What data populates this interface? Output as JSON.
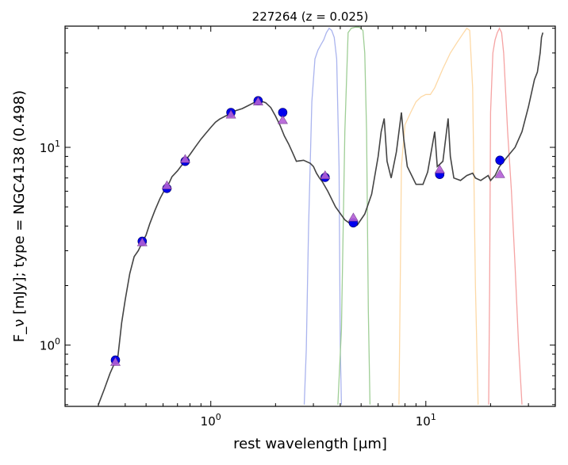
{
  "chart_data": {
    "type": "line",
    "title": "227264 (z = 0.025)",
    "xlabel": "rest wavelength [μm]",
    "ylabel": "F_ν [mJy];  type = NGC4138 (0.498)",
    "xscale": "log",
    "yscale": "log",
    "xlim": [
      0.21,
      40
    ],
    "ylim": [
      0.49,
      41
    ],
    "xticks": [
      {
        "value": 1,
        "base": "10",
        "exp": "0"
      },
      {
        "value": 10,
        "base": "10",
        "exp": "1"
      }
    ],
    "yticks": [
      {
        "value": 1,
        "base": "10",
        "exp": "0"
      },
      {
        "value": 10,
        "base": "10",
        "exp": "1"
      }
    ],
    "colors": {
      "model": "#444444",
      "observed": "#0000ee",
      "synthetic": "#b45fd6",
      "filter_blue": "#aab4ee",
      "filter_green": "#9fce96",
      "filter_orange": "#fdd9a6",
      "filter_red": "#f5a3a3"
    },
    "model_spectrum": {
      "x": [
        0.3,
        0.32,
        0.34,
        0.355,
        0.37,
        0.385,
        0.4,
        0.42,
        0.44,
        0.46,
        0.48,
        0.5,
        0.52,
        0.55,
        0.58,
        0.61,
        0.64,
        0.66,
        0.7,
        0.75,
        0.8,
        0.85,
        0.9,
        0.95,
        1.0,
        1.05,
        1.1,
        1.2,
        1.3,
        1.4,
        1.5,
        1.6,
        1.7,
        1.8,
        1.9,
        2.0,
        2.1,
        2.2,
        2.3,
        2.4,
        2.5,
        2.7,
        2.9,
        3.0,
        3.1,
        3.2,
        3.3,
        3.5,
        3.8,
        4.2,
        4.6,
        4.8,
        5.2,
        5.6,
        6.0,
        6.2,
        6.4,
        6.6,
        6.9,
        7.3,
        7.7,
        7.9,
        8.2,
        8.6,
        9.0,
        9.7,
        10.2,
        11.0,
        11.3,
        11.6,
        12.0,
        12.7,
        13.0,
        13.5,
        14.5,
        15.5,
        16.5,
        17.0,
        18.0,
        19.5,
        20.0,
        21.0,
        22.0,
        24.0,
        26.0,
        28.0,
        30.0,
        32.0,
        33.0,
        34.0,
        34.5,
        35.0
      ],
      "y": [
        0.5,
        0.6,
        0.72,
        0.8,
        0.88,
        1.3,
        1.7,
        2.3,
        2.8,
        3.0,
        3.3,
        3.6,
        4.1,
        4.8,
        5.5,
        6.1,
        6.6,
        7.1,
        7.6,
        8.4,
        9.2,
        10.1,
        11.0,
        11.8,
        12.6,
        13.4,
        13.9,
        14.6,
        15.3,
        15.7,
        16.3,
        16.9,
        17.2,
        16.8,
        15.9,
        14.4,
        12.9,
        11.4,
        10.4,
        9.4,
        8.5,
        8.6,
        8.3,
        8.0,
        7.4,
        7.0,
        6.7,
        6.0,
        5.0,
        4.3,
        4.0,
        4.05,
        4.6,
        5.8,
        9.0,
        12.0,
        14.0,
        8.5,
        7.0,
        9.5,
        15.0,
        11.0,
        8.0,
        7.2,
        6.5,
        6.5,
        7.5,
        12.0,
        8.0,
        8.2,
        8.5,
        14.0,
        9.0,
        7.0,
        6.8,
        7.2,
        7.4,
        7.0,
        6.8,
        7.2,
        6.8,
        7.2,
        8.0,
        9.0,
        10.0,
        12.0,
        16.0,
        22.0,
        24.0,
        30.0,
        36.0,
        38.0
      ]
    },
    "observed_points": {
      "x": [
        0.36,
        0.48,
        0.625,
        0.76,
        1.24,
        1.66,
        2.16,
        3.4,
        4.6,
        11.6,
        22.1
      ],
      "y": [
        0.84,
        3.35,
        6.2,
        8.5,
        15.0,
        17.2,
        15.0,
        7.05,
        4.15,
        7.3,
        8.6
      ]
    },
    "synthetic_points": {
      "x": [
        0.36,
        0.48,
        0.625,
        0.76,
        1.24,
        1.66,
        2.16,
        3.4,
        4.6,
        11.6,
        22.1
      ],
      "y": [
        0.82,
        3.3,
        6.4,
        8.7,
        14.6,
        17.0,
        13.7,
        7.2,
        4.4,
        7.7,
        7.3
      ]
    },
    "filter_curves": [
      {
        "color": "#aab4ee",
        "x": [
          2.72,
          2.78,
          2.85,
          2.95,
          3.05,
          3.15,
          3.25,
          3.35,
          3.45,
          3.55,
          3.65,
          3.75,
          3.85,
          3.95,
          4.0,
          4.05
        ],
        "y": [
          0.5,
          0.95,
          4.0,
          17.0,
          28.0,
          31.0,
          33.0,
          35.0,
          38.0,
          40.0,
          39.0,
          36.0,
          28.0,
          8.0,
          1.0,
          0.5
        ]
      },
      {
        "color": "#9fce96",
        "x": [
          3.9,
          4.05,
          4.2,
          4.35,
          4.5,
          4.7,
          4.9,
          5.1,
          5.2,
          5.3,
          5.4,
          5.5
        ],
        "y": [
          0.5,
          1.2,
          12.0,
          38.0,
          40.0,
          40.5,
          40.5,
          39.0,
          30.0,
          12.0,
          1.5,
          0.5
        ]
      },
      {
        "color": "#fdd9a6",
        "x": [
          7.5,
          7.6,
          7.7,
          8.0,
          8.5,
          9.0,
          9.5,
          10.0,
          10.5,
          11.0,
          12.0,
          13.0,
          14.0,
          15.0,
          15.5,
          16.0,
          16.5,
          17.0,
          17.5
        ],
        "y": [
          0.5,
          2.0,
          8.0,
          13.0,
          15.0,
          17.0,
          18.0,
          18.5,
          18.5,
          20.0,
          25.0,
          30.0,
          34.0,
          38.0,
          40.0,
          39.0,
          20.0,
          2.0,
          0.5
        ]
      },
      {
        "color": "#f5a3a3",
        "x": [
          19.6,
          19.8,
          20.0,
          20.5,
          21.0,
          21.5,
          22.0,
          22.5,
          23.0,
          24.0,
          25.0,
          26.0,
          27.0,
          28.0
        ],
        "y": [
          0.5,
          2.0,
          15.0,
          30.0,
          35.0,
          38.0,
          40.0,
          38.0,
          30.0,
          12.0,
          6.0,
          2.5,
          1.0,
          0.5
        ]
      }
    ]
  }
}
